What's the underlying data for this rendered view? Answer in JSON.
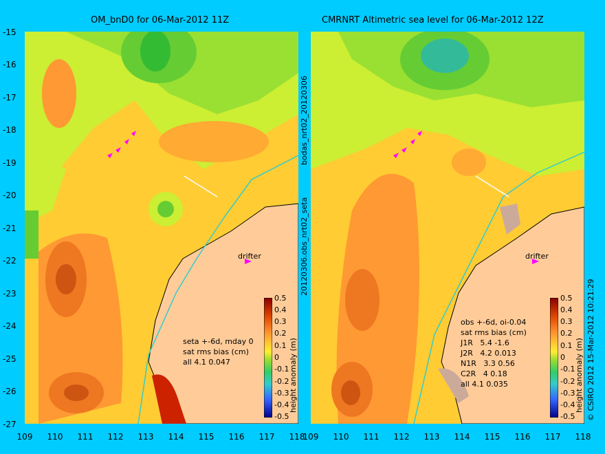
{
  "left_panel": {
    "title": "OM_bnD0 for 06-Mar-2012 11Z",
    "info_lines": [
      "seta +-6d, mday 0",
      "sat rms bias (cm)",
      "all 4.1 0.047"
    ],
    "drifter_label": "drifter",
    "colorbar_label": "height anomaly (m)"
  },
  "right_panel": {
    "title": "CMRNRT Altimetric sea level  for 06-Mar-2012 12Z",
    "info_lines": [
      "obs +-6d, oi-0.04",
      "sat rms bias (cm)",
      "J1R   5.4 -1.6",
      "J2R   4.2 0.013",
      "N1R   3.3 0.56",
      "C2R   4 0.18",
      "all 4.1 0.035"
    ],
    "drifter_label": "drifter",
    "colorbar_label": "height anomaly (m)"
  },
  "side_labels": {
    "middle": "20120306.obs_nrt02_seta",
    "middle_top": "bodas_nrt02_20120306",
    "right": "© CSIRO 2012  15-Mar-2012 10:21:29"
  },
  "axes": {
    "lat_ticks": [
      "-15",
      "-16",
      "-17",
      "-18",
      "-19",
      "-20",
      "-21",
      "-22",
      "-23",
      "-24",
      "-25",
      "-26",
      "-27"
    ],
    "lon_ticks": [
      "109",
      "110",
      "111",
      "112",
      "113",
      "114",
      "115",
      "116",
      "117",
      "118"
    ]
  },
  "colorbar_ticks": [
    "0.5",
    "0.4",
    "0.3",
    "0.2",
    "0.1",
    "0",
    "-0.1",
    "-0.2",
    "-0.3",
    "-0.4",
    "-0.5"
  ],
  "colors": {
    "background": "#00ccff",
    "land": "#ffcc99",
    "drifter": "#ff00ff"
  }
}
